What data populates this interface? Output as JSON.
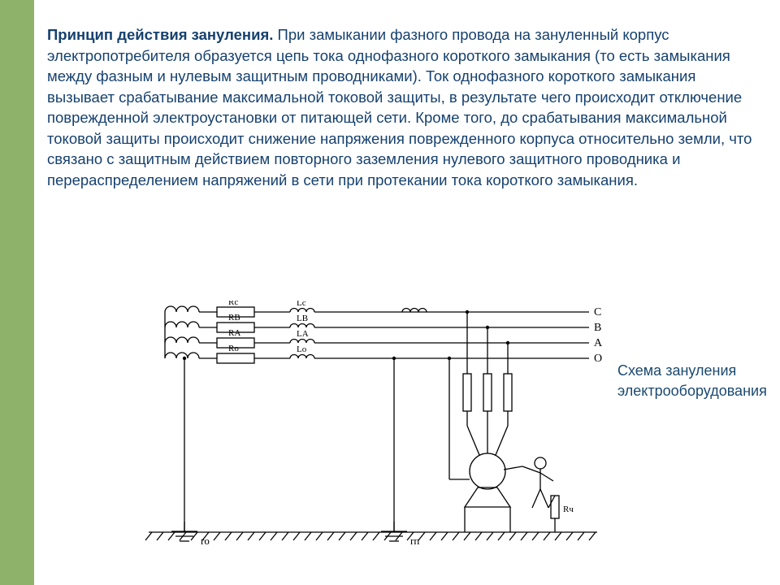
{
  "text": {
    "title": "Принцип действия зануления.",
    "body": " При замыкании фазного провода на зануленный корпус электропотребителя образуется цепь тока однофазного короткого замыкания (то есть замыкания между фазным и нулевым защитным проводниками). Ток однофазного короткого замыкания вызывает срабатывание максимальной токовой защиты, в результате чего происходит отключение поврежденной электроустановки от питающей сети. Кроме того, до срабатывания максимальной токовой защиты происходит снижение напряжения поврежденного корпуса относительно земли, что связано с защитным действием повторного заземления нулевого защитного проводника и перераспределением напряжений в сети при протекании тока короткого замыкания."
  },
  "caption": "Схема зануления электрооборудования",
  "colors": {
    "sidebar": "#8fb26a",
    "text": "#16416f",
    "diagram_stroke": "#000000",
    "background": "#ffffff"
  },
  "diagram": {
    "type": "electrical-schematic",
    "phase_labels": [
      "C",
      "B",
      "A",
      "O"
    ],
    "resistor_labels": [
      "Rc",
      "RB",
      "RA",
      "Ro"
    ],
    "inductor_labels": [
      "Lc",
      "LB",
      "LA",
      "Lo"
    ],
    "ground_labels": [
      "ro",
      "rп"
    ],
    "person_r_label": "Rч",
    "line_y": [
      14,
      33,
      52,
      71
    ],
    "bus_y": [
      22,
      41,
      60,
      79
    ],
    "stroke_width": 1.3,
    "stroke_color": "#000000",
    "fill_color": "#ffffff"
  }
}
